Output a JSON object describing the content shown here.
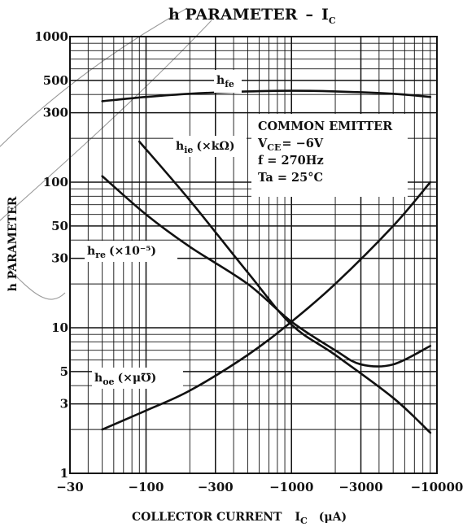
{
  "chart_data": {
    "type": "line",
    "title": "h PARAMETER",
    "title_dash": "–",
    "title_var": "I",
    "title_var_sub": "C",
    "xlabel": "COLLECTOR CURRENT",
    "xlabel_var": "I",
    "xlabel_var_sub": "C",
    "xlabel_unit": "(μA)",
    "ylabel": "h PARAMETER",
    "x_scale": "log",
    "y_scale": "log",
    "x_ticks": [
      "−30",
      "−100",
      "−300",
      "−1000",
      "−3000",
      "−10000"
    ],
    "y_ticks": [
      "1",
      "3",
      "5",
      "10",
      "30",
      "50",
      "100",
      "300",
      "500",
      "1000"
    ],
    "xlim": [
      -30,
      -10000
    ],
    "ylim": [
      1,
      1000
    ],
    "grid": true,
    "conditions": {
      "line1": "COMMON EMITTER",
      "vce_label": "V",
      "vce_sub": "CE",
      "vce_value": "= −6V",
      "freq": "f = 270Hz",
      "temp": "Ta = 25°C"
    },
    "series": [
      {
        "name": "h",
        "name_sub": "fe",
        "name_suffix": "",
        "x": [
          -50,
          -100,
          -200,
          -500,
          -1000,
          -2000,
          -5000,
          -9000
        ],
        "y": [
          360,
          385,
          405,
          420,
          425,
          420,
          405,
          385
        ]
      },
      {
        "name": "h",
        "name_sub": "ie",
        "name_suffix": "(×kΩ)",
        "x": [
          -90,
          -200,
          -500,
          -1000,
          -2000,
          -5000,
          -9000
        ],
        "y": [
          190,
          75,
          24,
          10.5,
          6.5,
          3.3,
          1.9
        ]
      },
      {
        "name": "h",
        "name_sub": "re",
        "name_suffix": "(×10⁻⁵)",
        "x": [
          -50,
          -100,
          -200,
          -500,
          -1000,
          -2000,
          -3000,
          -5000,
          -9000
        ],
        "y": [
          110,
          60,
          36,
          20,
          11,
          7,
          5.6,
          5.6,
          7.5
        ]
      },
      {
        "name": "h",
        "name_sub": "oe",
        "name_suffix": "(×μ℧)",
        "x": [
          -50,
          -100,
          -200,
          -500,
          -1000,
          -2000,
          -5000,
          -9000
        ],
        "y": [
          2,
          2.7,
          3.7,
          6.5,
          11,
          20,
          50,
          100
        ]
      }
    ]
  }
}
